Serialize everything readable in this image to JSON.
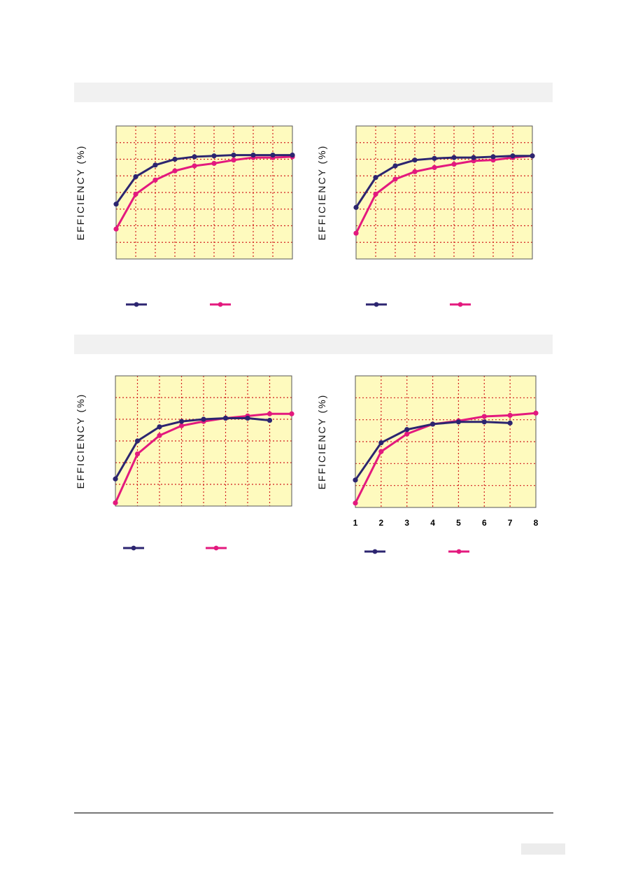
{
  "colors": {
    "plot_bg": "#fefabe",
    "grid": "#d21f1f",
    "series_a": "#2c2570",
    "series_b": "#e3197e",
    "frame": "#555555"
  },
  "chart_data": [
    {
      "type": "line",
      "ylabel": "EFFICIENCY (%)",
      "x": [
        1,
        2,
        3,
        4,
        5,
        6,
        7,
        8,
        9,
        10
      ],
      "xlim": [
        1,
        10
      ],
      "ylim": [
        0,
        8
      ],
      "grid": true,
      "series": [
        {
          "values": [
            3.3,
            4.95,
            5.65,
            6.0,
            6.15,
            6.2,
            6.25,
            6.25,
            6.25,
            6.25
          ]
        },
        {
          "values": [
            1.8,
            3.9,
            4.75,
            5.3,
            5.6,
            5.75,
            5.95,
            6.1,
            6.1,
            6.15
          ]
        }
      ]
    },
    {
      "type": "line",
      "ylabel": "EFFICIENCY (%)",
      "x": [
        1,
        2,
        3,
        4,
        5,
        6,
        7,
        8,
        9,
        10
      ],
      "xlim": [
        1,
        10
      ],
      "ylim": [
        0,
        8
      ],
      "grid": true,
      "series": [
        {
          "values": [
            3.1,
            4.9,
            5.6,
            5.95,
            6.05,
            6.1,
            6.1,
            6.15,
            6.2,
            6.2
          ]
        },
        {
          "values": [
            1.55,
            3.9,
            4.8,
            5.25,
            5.5,
            5.7,
            5.9,
            5.95,
            6.1,
            6.2
          ]
        }
      ]
    },
    {
      "type": "line",
      "ylabel": "EFFICIENCY (%)",
      "x": [
        1,
        2,
        3,
        4,
        5,
        6,
        7,
        8,
        9
      ],
      "xlim": [
        1,
        9
      ],
      "ylim": [
        0,
        6
      ],
      "grid": true,
      "series": [
        {
          "x": [
            1,
            2,
            3,
            4,
            5,
            6,
            7,
            8
          ],
          "values": [
            1.25,
            3.0,
            3.65,
            3.9,
            4.0,
            4.05,
            4.05,
            3.95
          ]
        },
        {
          "x": [
            1,
            2,
            3,
            4,
            5,
            6,
            7,
            8,
            9
          ],
          "values": [
            0.15,
            2.4,
            3.25,
            3.7,
            3.9,
            4.05,
            4.15,
            4.25,
            4.25
          ]
        }
      ]
    },
    {
      "type": "line",
      "ylabel": "EFFICIENCY (%)",
      "categories": [
        "1",
        "2",
        "3",
        "4",
        "5",
        "6",
        "7",
        "8"
      ],
      "x": [
        1,
        2,
        3,
        4,
        5,
        6,
        7,
        8
      ],
      "xlim": [
        1,
        8
      ],
      "ylim": [
        0,
        6
      ],
      "grid": true,
      "series": [
        {
          "x": [
            1,
            2,
            3,
            4,
            5,
            6,
            7
          ],
          "values": [
            1.25,
            2.95,
            3.55,
            3.8,
            3.9,
            3.9,
            3.85
          ]
        },
        {
          "x": [
            1,
            2,
            3,
            4,
            5,
            6,
            7,
            8
          ],
          "values": [
            0.2,
            2.55,
            3.35,
            3.8,
            3.95,
            4.15,
            4.2,
            4.3
          ]
        }
      ]
    }
  ]
}
